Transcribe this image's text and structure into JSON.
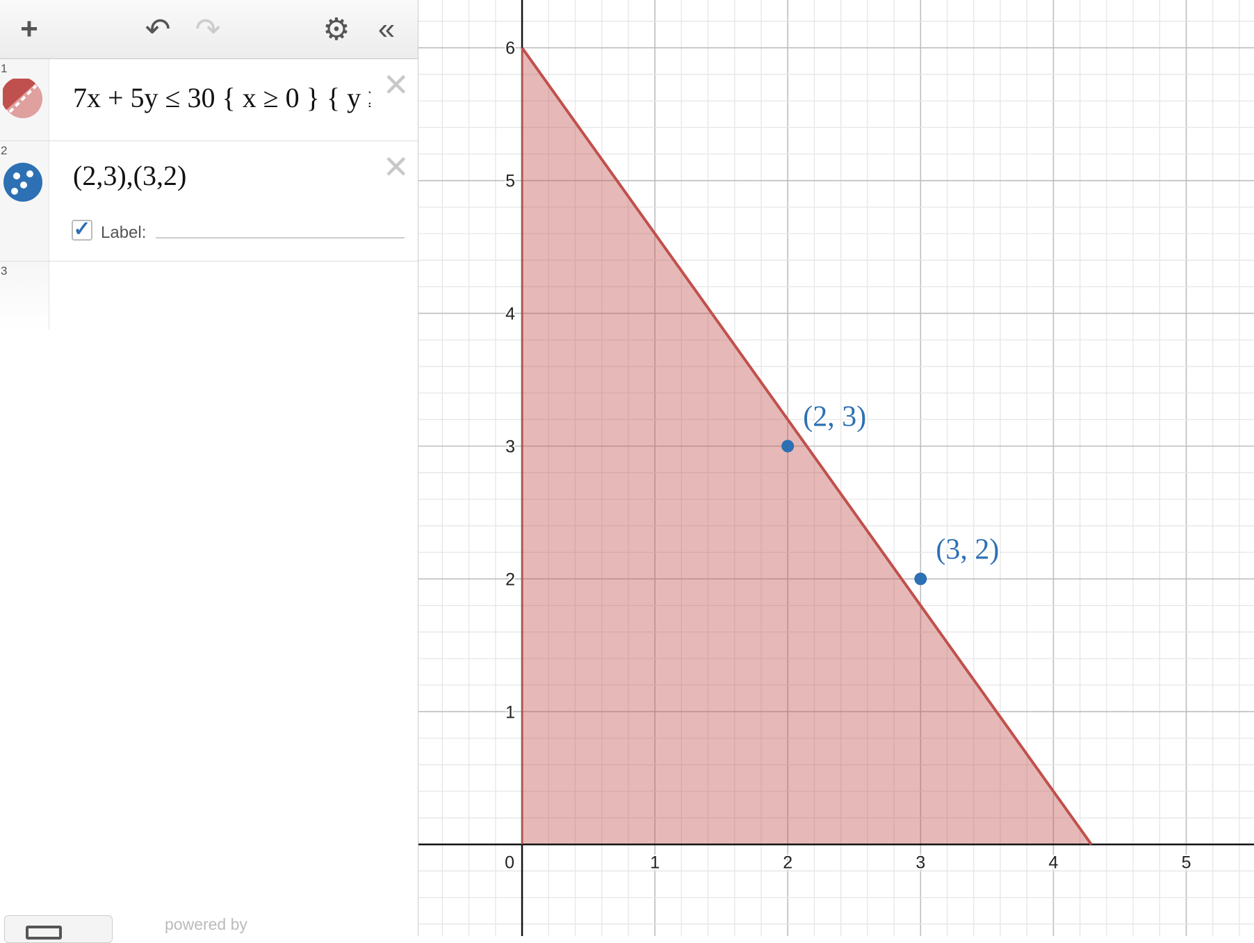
{
  "toolbar": {
    "add": "+",
    "undo": "↶",
    "redo": "↷",
    "settings": "⚙",
    "collapse": "«"
  },
  "expressions": [
    {
      "index": "1",
      "latex": "7x + 5y ≤ 30 { x ≥ 0 } { y ≥",
      "color": "#c0504d",
      "icon": "inequality-icon"
    },
    {
      "index": "2",
      "latex": "(2,3),(3,2)",
      "color": "#2d70b3",
      "icon": "points-icon",
      "label_checkbox": true,
      "label_text": "Label:",
      "label_value": ""
    },
    {
      "index": "3",
      "latex": ""
    }
  ],
  "footer": {
    "powered_by": "powered by"
  },
  "chart_data": {
    "type": "region-and-scatter",
    "xlim": [
      -0.78,
      5.51
    ],
    "ylim": [
      -0.69,
      6.36
    ],
    "grid": true,
    "x_ticks": [
      0,
      1,
      2,
      3,
      4,
      5
    ],
    "y_ticks": [
      1,
      2,
      3,
      4,
      5,
      6
    ],
    "region": {
      "inequality": "7x + 5y ≤ 30, x ≥ 0, y ≥ 0",
      "vertices": [
        [
          0,
          0
        ],
        [
          0,
          6
        ],
        [
          4.2857,
          0
        ]
      ],
      "color": "#c0504d"
    },
    "points": [
      {
        "x": 2,
        "y": 3,
        "label": "(2, 3)"
      },
      {
        "x": 3,
        "y": 2,
        "label": "(3, 2)"
      }
    ],
    "point_color": "#2d70b3"
  }
}
